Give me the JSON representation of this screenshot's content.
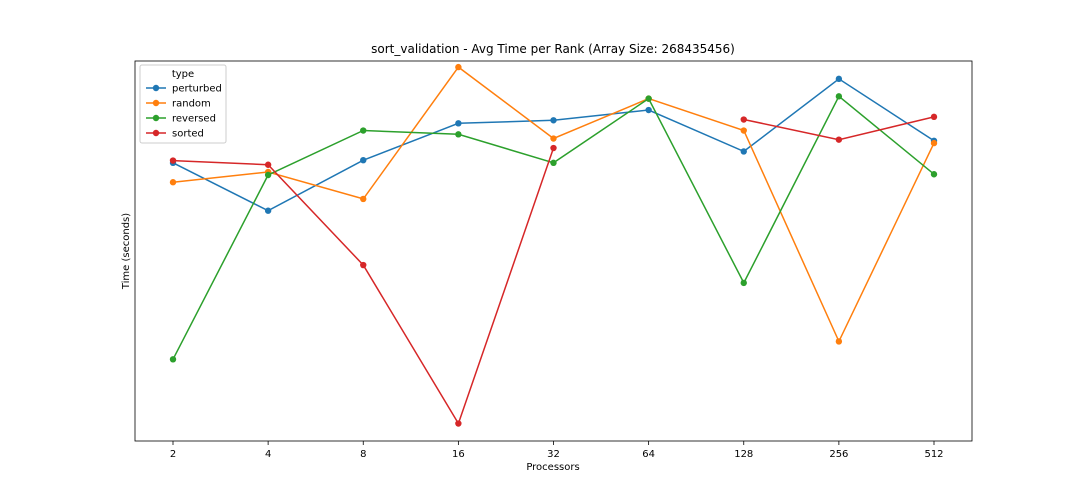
{
  "chart_data": {
    "type": "line",
    "title": "sort_validation - Avg Time per Rank (Array Size: 268435456)",
    "xlabel": "Processors",
    "ylabel": "Time (seconds)",
    "categories": [
      "2",
      "4",
      "8",
      "16",
      "32",
      "64",
      "128",
      "256",
      "512"
    ],
    "ylim": [
      0,
      100
    ],
    "y_ticks_shown": false,
    "grid": false,
    "legend": {
      "title": "type",
      "placement": "top-left"
    },
    "series": [
      {
        "name": "perturbed",
        "color": "#1f77b4",
        "values": [
          73.2,
          60.6,
          73.9,
          83.6,
          84.4,
          87.1,
          76.2,
          95.3,
          79.0
        ]
      },
      {
        "name": "random",
        "color": "#ff7f0e",
        "values": [
          68.1,
          70.8,
          63.7,
          98.4,
          79.6,
          90.1,
          81.7,
          26.2,
          78.4
        ]
      },
      {
        "name": "reversed",
        "color": "#2ca02c",
        "values": [
          21.5,
          70.0,
          81.7,
          80.7,
          73.2,
          90.1,
          41.6,
          90.7,
          70.2
        ]
      },
      {
        "name": "sorted",
        "color": "#d62728",
        "values": [
          73.8,
          72.7,
          46.3,
          4.6,
          77.1,
          null,
          84.6,
          79.3,
          85.3
        ]
      }
    ]
  }
}
